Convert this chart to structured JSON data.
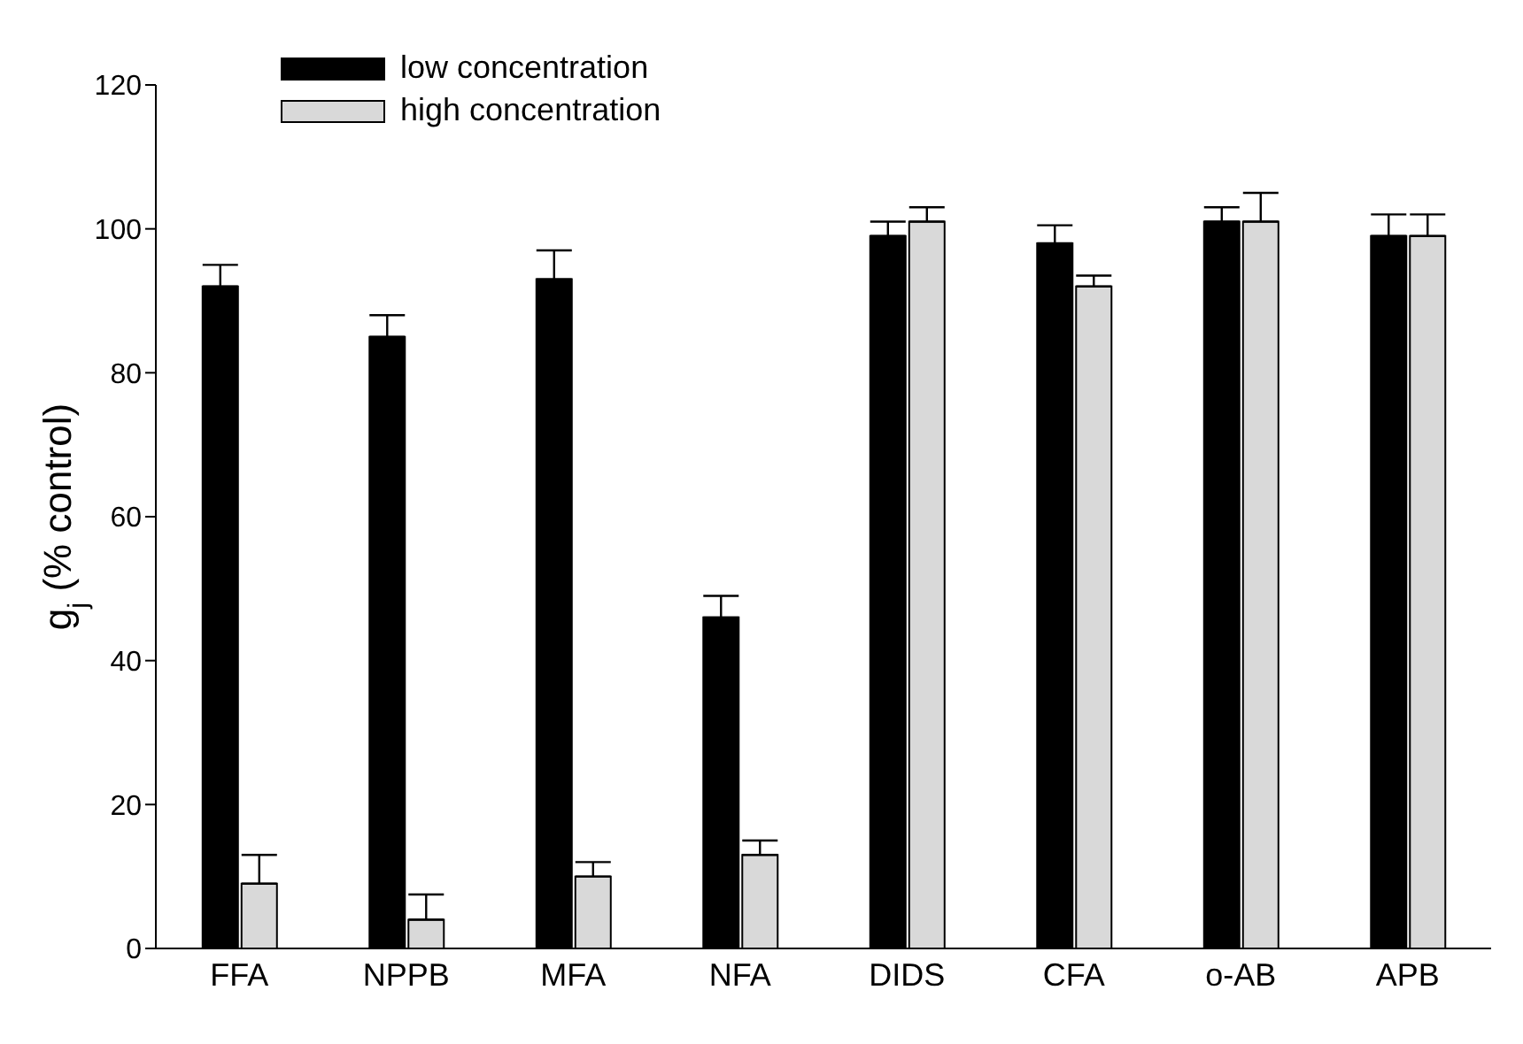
{
  "chart_data": {
    "type": "bar",
    "ylabel": "g$_{j}$ (% control)",
    "categories": [
      "FFA",
      "NPPB",
      "MFA",
      "NFA",
      "DIDS",
      "CFA",
      "o-AB",
      "APB"
    ],
    "series": [
      {
        "name": "low concentration",
        "color": "#000000",
        "values": [
          92,
          85,
          93,
          46,
          99,
          98,
          101,
          99
        ],
        "errors": [
          [
            92,
            95
          ],
          [
            85,
            88
          ],
          [
            93,
            97
          ],
          [
            46,
            49
          ],
          [
            99,
            101
          ],
          [
            98,
            100.5
          ],
          [
            101,
            103
          ],
          [
            99,
            102
          ]
        ]
      },
      {
        "name": "high concentration",
        "color": "#d9d9d9",
        "values": [
          9,
          4,
          10,
          13,
          101,
          92,
          101,
          99
        ],
        "errors": [
          [
            9,
            13
          ],
          [
            4,
            7.5
          ],
          [
            10,
            12
          ],
          [
            13,
            15
          ],
          [
            101,
            103
          ],
          [
            92,
            93.5
          ],
          [
            101,
            105
          ],
          [
            99,
            102
          ]
        ]
      }
    ],
    "ylim": [
      0,
      120
    ],
    "yticks": [
      0,
      20,
      40,
      60,
      80,
      100,
      120
    ],
    "grid": false,
    "legend": "top left"
  }
}
